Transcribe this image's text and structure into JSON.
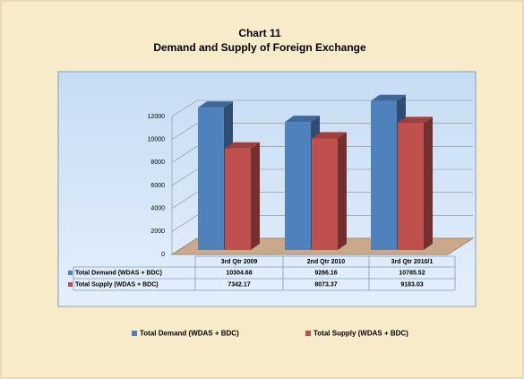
{
  "chart_data": {
    "type": "bar3d",
    "title": "Chart 11",
    "subtitle": "Demand and Supply of Foreign Exchange",
    "categories": [
      "3rd  Qtr 2009",
      "2nd Qtr 2010",
      "3rd  Qtr 2010/1"
    ],
    "series": [
      {
        "name": "Total Demand (WDAS + BDC)",
        "color": "#4f81bd",
        "values": [
          10304.68,
          9266.16,
          10785.52
        ]
      },
      {
        "name": "Total Supply  (WDAS + BDC)",
        "color": "#c0504d",
        "values": [
          7342.17,
          8073.37,
          9183.03
        ]
      }
    ],
    "ylim": [
      0,
      12000
    ],
    "yticks": [
      0,
      2000,
      4000,
      6000,
      8000,
      10000,
      12000
    ],
    "grid": true,
    "legend": "bottom",
    "data_table": true
  }
}
